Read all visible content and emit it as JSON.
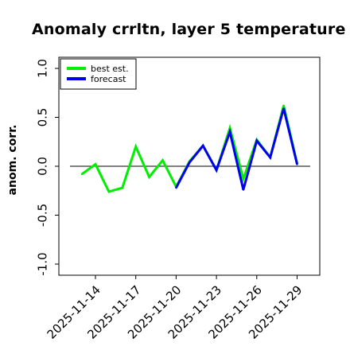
{
  "chart_data": {
    "type": "line",
    "title": "Anomaly crrltn, layer 5 temperature",
    "ylabel": "anom. corr.",
    "xlabel": "",
    "ylim": [
      -1.0,
      1.0
    ],
    "yticks": [
      "-1.0",
      "-0.5",
      "0.0",
      "0.5",
      "1.0"
    ],
    "xticks": [
      {
        "label": "2025-11-14",
        "highlight": false
      },
      {
        "label": "2025-11-17",
        "highlight": false
      },
      {
        "label": "2025-11-20",
        "highlight": true
      },
      {
        "label": "2025-11-23",
        "highlight": false
      },
      {
        "label": "2025-11-26",
        "highlight": false
      },
      {
        "label": "2025-11-29",
        "highlight": false
      }
    ],
    "reference_line": 0.0,
    "grid": false,
    "legend_position": "top-left",
    "colors": {
      "best_est": "#00ee00",
      "forecast": "#0000ee",
      "highlight_tick": "#228b22",
      "refline": "#000000"
    },
    "series": [
      {
        "name": "best est.",
        "color": "#00ee00",
        "x": [
          "2025-11-13",
          "2025-11-14",
          "2025-11-15",
          "2025-11-16",
          "2025-11-17",
          "2025-11-18",
          "2025-11-19",
          "2025-11-20",
          "2025-11-21",
          "2025-11-22",
          "2025-11-23",
          "2025-11-24",
          "2025-11-25",
          "2025-11-26",
          "2025-11-27",
          "2025-11-28",
          "2025-11-29"
        ],
        "values": [
          -0.08,
          0.02,
          -0.26,
          -0.22,
          0.2,
          -0.11,
          0.06,
          -0.21,
          0.05,
          0.21,
          -0.04,
          0.39,
          -0.13,
          0.27,
          0.09,
          0.62,
          0.03
        ]
      },
      {
        "name": "forecast",
        "color": "#0000ee",
        "x": [
          "2025-11-20",
          "2025-11-21",
          "2025-11-22",
          "2025-11-23",
          "2025-11-24",
          "2025-11-25",
          "2025-11-26",
          "2025-11-27",
          "2025-11-28",
          "2025-11-29"
        ],
        "values": [
          -0.22,
          0.04,
          0.21,
          -0.04,
          0.35,
          -0.24,
          0.26,
          0.09,
          0.59,
          0.02
        ]
      }
    ]
  }
}
